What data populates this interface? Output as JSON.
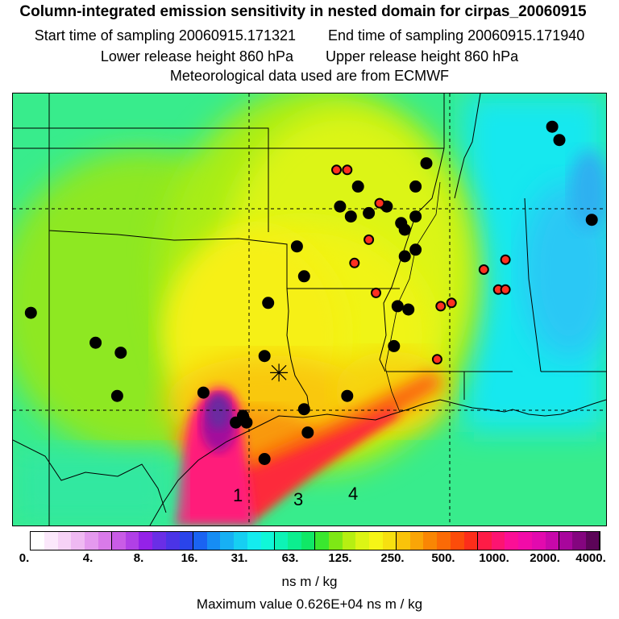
{
  "title": {
    "main": "Column-integrated emission sensitivity in nested domain for cirpas_20060915",
    "start_label": "Start time of sampling 20060915.171321",
    "end_label": "End time of sampling 20060915.171940",
    "lower_label": "Lower release height  860 hPa",
    "upper_label": "Upper release height  860 hPa",
    "met_label": "Meteorological data used are from ECMWF"
  },
  "colorbar": {
    "ticks": [
      "0.",
      "4.",
      "8.",
      "16.",
      "31.",
      "63.",
      "125.",
      "250.",
      "500.",
      "1000.",
      "2000.",
      "4000."
    ],
    "colors": [
      "#ffffff",
      "#fbe8fb",
      "#f6d2f6",
      "#efb9f2",
      "#e499ee",
      "#d97ae9",
      "#c95ce6",
      "#b140e6",
      "#9422e8",
      "#6a2ee6",
      "#4b34e6",
      "#2a44ea",
      "#1a63f2",
      "#168df4",
      "#17b0f4",
      "#16cff2",
      "#14ecef",
      "#10f7d8",
      "#0df3b6",
      "#0cee8f",
      "#10e866",
      "#3ae72f",
      "#7ee815",
      "#b6ef12",
      "#dcf515",
      "#f6f516",
      "#f7e010",
      "#f9c30a",
      "#f9a507",
      "#f98604",
      "#fb6a06",
      "#fc4c0a",
      "#fd2d1a",
      "#fe1c46",
      "#fd1471",
      "#fb0f96",
      "#f20ba8",
      "#e20aae",
      "#c708aa",
      "#a8069c",
      "#84057f",
      "#5c0458"
    ],
    "units": "ns m / kg"
  },
  "max_value": "Maximum value  0.626E+04 ns m / kg",
  "map": {
    "labels": [
      "1",
      "3",
      "4"
    ],
    "colors": {
      "background": "#3af08a",
      "plume": "#ff1a7a",
      "core": "#6a2aa0",
      "dot_black": "#000000",
      "dot_red": "#ff3020"
    },
    "stations_black": [
      [
        -102.0,
        34.4
      ],
      [
        -100.2,
        33.5
      ],
      [
        -99.5,
        33.2
      ],
      [
        -99.6,
        31.9
      ],
      [
        -97.2,
        32.0
      ],
      [
        -95.5,
        33.1
      ],
      [
        -95.4,
        34.7
      ],
      [
        -94.6,
        36.4
      ],
      [
        -94.4,
        35.5
      ],
      [
        -93.4,
        37.6
      ],
      [
        -93.1,
        37.3
      ],
      [
        -92.9,
        38.2
      ],
      [
        -92.6,
        37.4
      ],
      [
        -92.1,
        37.6
      ],
      [
        -91.7,
        37.1
      ],
      [
        -91.3,
        38.2
      ],
      [
        -91.3,
        37.3
      ],
      [
        -91.0,
        38.9
      ],
      [
        -91.6,
        36.9
      ],
      [
        -91.3,
        36.3
      ],
      [
        -91.6,
        36.1
      ],
      [
        -91.8,
        34.6
      ],
      [
        -91.5,
        34.5
      ],
      [
        -91.9,
        33.4
      ],
      [
        -93.2,
        31.9
      ],
      [
        -94.4,
        31.5
      ],
      [
        -94.3,
        30.8
      ],
      [
        -96.1,
        31.3
      ],
      [
        -96.0,
        31.1
      ],
      [
        -96.3,
        31.1
      ],
      [
        -95.5,
        30.0
      ],
      [
        -87.3,
        39.6
      ],
      [
        -86.4,
        37.2
      ],
      [
        -87.5,
        40.0
      ]
    ],
    "stations_red": [
      [
        -93.5,
        38.7
      ],
      [
        -93.2,
        38.7
      ],
      [
        -92.3,
        37.7
      ],
      [
        -92.6,
        36.6
      ],
      [
        -93.0,
        35.9
      ],
      [
        -92.4,
        35.0
      ],
      [
        -90.7,
        33.0
      ],
      [
        -90.3,
        34.7
      ],
      [
        -89.0,
        35.1
      ],
      [
        -88.8,
        35.1
      ],
      [
        -88.8,
        36.0
      ],
      [
        -89.4,
        35.7
      ],
      [
        -90.6,
        34.6
      ]
    ],
    "release_point": [
      -95.1,
      32.6
    ]
  }
}
